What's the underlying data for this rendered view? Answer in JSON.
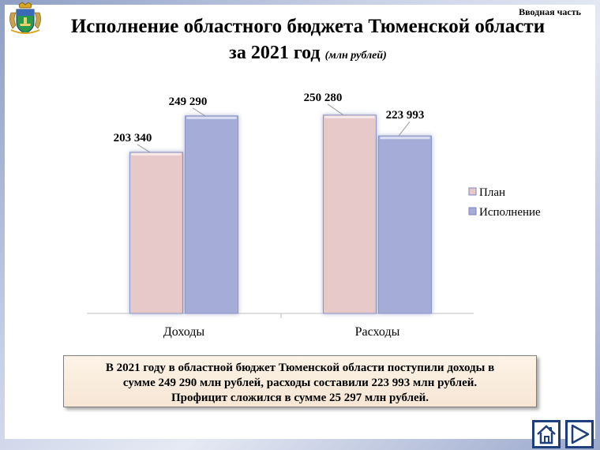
{
  "header": {
    "section_label": "Вводная часть",
    "title_line1": "Исполнение областного бюджета Тюменской области",
    "title_line2": "за 2021 год",
    "title_unit": "(млн рублей)",
    "emblem_icon": "coat-of-arms-icon"
  },
  "chart_data": {
    "type": "bar",
    "categories": [
      "Доходы",
      "Расходы"
    ],
    "series": [
      {
        "name": "План",
        "values": [
          203340,
          250280
        ],
        "labels": [
          "203 340",
          "250 280"
        ],
        "color": "#e8c9c9"
      },
      {
        "name": "Исполнение",
        "values": [
          249290,
          223993
        ],
        "labels": [
          "249 290",
          "223 993"
        ],
        "color": "#a6acd8"
      }
    ],
    "legend": "right",
    "grid": false,
    "ylim": [
      0,
      275000
    ]
  },
  "summary": {
    "line1": "В 2021 году в областной бюджет Тюменской области поступили доходы в",
    "line2": "сумме 249 290 млн рублей, расходы составили 223 993 млн рублей.",
    "line3": "Профицит сложился в сумме 25 297 млн рублей."
  },
  "nav": {
    "home_icon": "home-icon",
    "next_icon": "next-arrow-icon"
  }
}
